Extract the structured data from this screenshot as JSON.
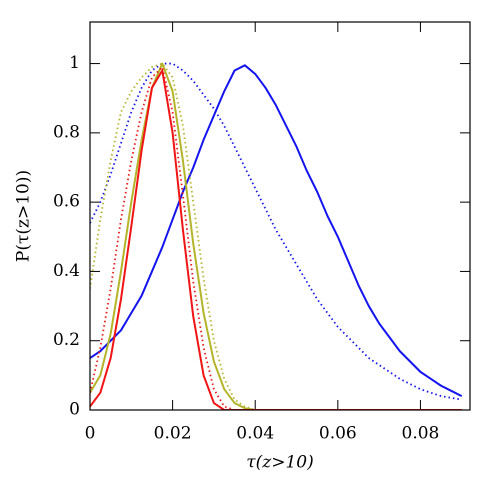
{
  "chart_data": {
    "type": "line",
    "xlabel": "τ(z>10)",
    "ylabel": "P(τ(z>10))",
    "x": [
      0,
      0.0025,
      0.005,
      0.0075,
      0.01,
      0.0125,
      0.015,
      0.0175,
      0.02,
      0.0225,
      0.025,
      0.0275,
      0.03,
      0.0325,
      0.035,
      0.0375,
      0.04,
      0.0425,
      0.045,
      0.0475,
      0.05,
      0.0525,
      0.055,
      0.0575,
      0.06,
      0.0625,
      0.065,
      0.0675,
      0.07,
      0.0725,
      0.075,
      0.0775,
      0.08,
      0.0825,
      0.085,
      0.0875,
      0.09
    ],
    "series": [
      {
        "color": "#1414f0",
        "dash": "solid",
        "values": [
          0.15,
          0.17,
          0.2,
          0.23,
          0.28,
          0.33,
          0.4,
          0.47,
          0.55,
          0.63,
          0.7,
          0.78,
          0.85,
          0.92,
          0.98,
          0.995,
          0.97,
          0.93,
          0.88,
          0.82,
          0.76,
          0.69,
          0.63,
          0.56,
          0.5,
          0.43,
          0.36,
          0.3,
          0.25,
          0.21,
          0.17,
          0.14,
          0.11,
          0.09,
          0.07,
          0.055,
          0.04
        ]
      },
      {
        "color": "#1414f0",
        "dash": "dotted",
        "values": [
          0.54,
          0.6,
          0.68,
          0.77,
          0.86,
          0.93,
          0.98,
          1.0,
          1.0,
          0.98,
          0.95,
          0.91,
          0.87,
          0.82,
          0.76,
          0.7,
          0.64,
          0.58,
          0.52,
          0.47,
          0.42,
          0.37,
          0.32,
          0.28,
          0.24,
          0.21,
          0.18,
          0.15,
          0.13,
          0.11,
          0.09,
          0.075,
          0.06,
          0.05,
          0.04,
          0.035,
          0.03
        ]
      },
      {
        "color": "#b4b42a",
        "dash": "solid",
        "values": [
          0.05,
          0.1,
          0.22,
          0.4,
          0.6,
          0.78,
          0.93,
          1.0,
          0.92,
          0.72,
          0.48,
          0.28,
          0.14,
          0.06,
          0.02,
          0.005,
          0,
          0,
          0,
          0,
          0,
          0,
          0,
          0,
          0,
          0,
          0,
          0,
          0,
          0,
          0,
          0,
          0,
          0,
          0,
          0,
          0
        ]
      },
      {
        "color": "#b4b42a",
        "dash": "dotted",
        "values": [
          0.35,
          0.55,
          0.72,
          0.86,
          0.92,
          0.96,
          0.99,
          1.0,
          0.96,
          0.82,
          0.6,
          0.38,
          0.2,
          0.09,
          0.03,
          0.01,
          0,
          0,
          0,
          0,
          0,
          0,
          0,
          0,
          0,
          0,
          0,
          0,
          0,
          0,
          0,
          0,
          0,
          0,
          0,
          0,
          0
        ]
      },
      {
        "color": "#f01414",
        "dash": "solid",
        "values": [
          0.01,
          0.05,
          0.15,
          0.32,
          0.53,
          0.75,
          0.93,
          0.98,
          0.8,
          0.52,
          0.27,
          0.1,
          0.02,
          0,
          0,
          0,
          0,
          0,
          0,
          0,
          0,
          0,
          0,
          0,
          0,
          0,
          0,
          0,
          0,
          0,
          0,
          0,
          0,
          0,
          0,
          0,
          0
        ]
      },
      {
        "color": "#f01414",
        "dash": "dotted",
        "values": [
          0.05,
          0.18,
          0.35,
          0.55,
          0.72,
          0.86,
          0.96,
          0.99,
          0.86,
          0.62,
          0.37,
          0.18,
          0.06,
          0.01,
          0,
          0,
          0,
          0,
          0,
          0,
          0,
          0,
          0,
          0,
          0,
          0,
          0,
          0,
          0,
          0,
          0,
          0,
          0,
          0,
          0,
          0,
          0
        ]
      }
    ],
    "xlim": [
      0,
      0.092
    ],
    "xticks": [
      0,
      0.02,
      0.04,
      0.06,
      0.08
    ],
    "ylim": [
      0,
      1.12
    ],
    "yticks": [
      0,
      0.2,
      0.4,
      0.6,
      0.8,
      1
    ],
    "grid": false
  }
}
